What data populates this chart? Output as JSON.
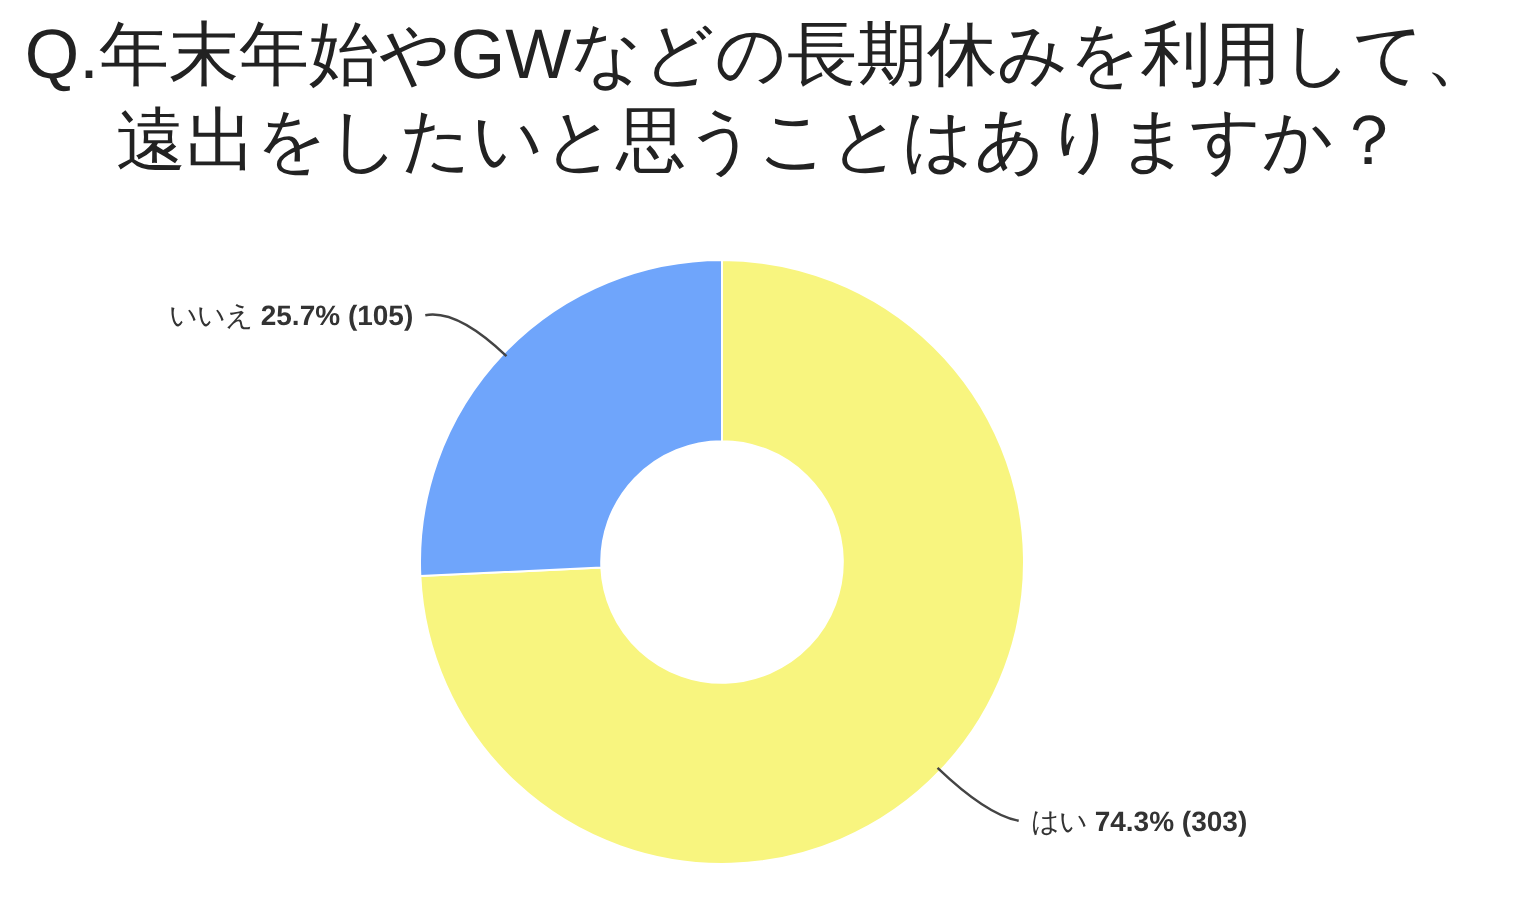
{
  "chart_data": {
    "type": "donut",
    "title": "Q.年末年始やGWなどの長期休みを利用して、遠出をしたいと思うことはありますか？",
    "categories": [
      "はい",
      "いいえ"
    ],
    "values": [
      303,
      105
    ],
    "colors": [
      "#f8f57f",
      "#6fa5fb"
    ],
    "value_labels": [
      "74.3% (303)",
      "25.7% (105)"
    ]
  }
}
